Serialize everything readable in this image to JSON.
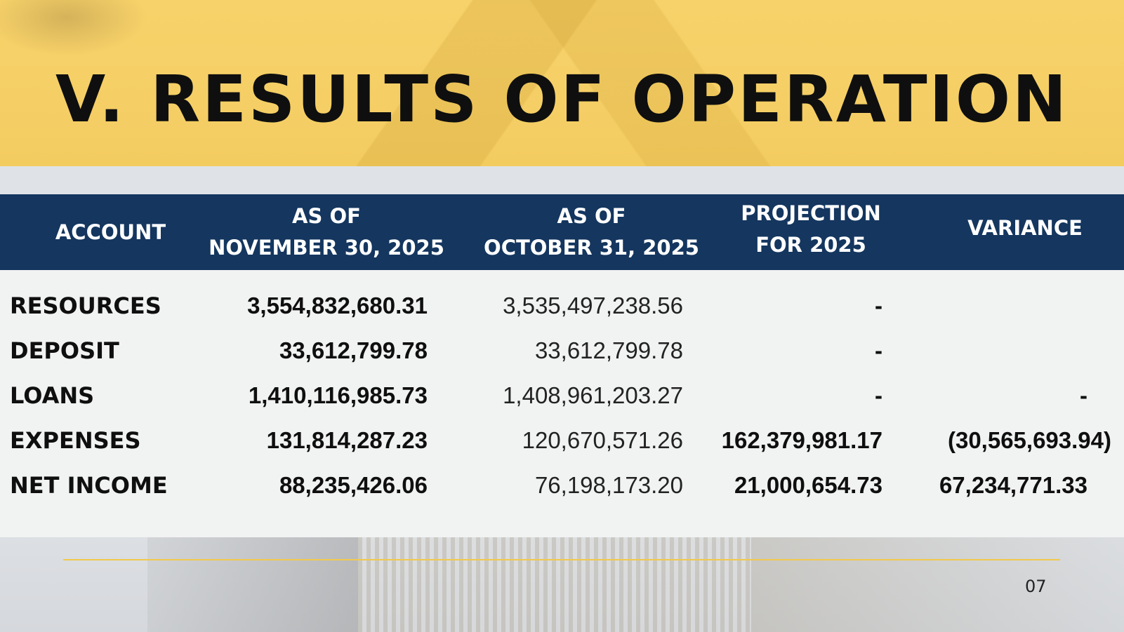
{
  "slide": {
    "title": "V. RESULTS OF OPERATION",
    "page_number": "07"
  },
  "table": {
    "headers": [
      {
        "line1": "ACCOUNT",
        "line2": ""
      },
      {
        "line1": "AS OF",
        "line2": "NOVEMBER 30, 2025"
      },
      {
        "line1": "AS OF",
        "line2": "OCTOBER 31, 2025"
      },
      {
        "line1": "PROJECTION",
        "line2": "FOR 2025"
      },
      {
        "line1": "VARIANCE",
        "line2": ""
      }
    ],
    "rows": [
      {
        "account": "RESOURCES",
        "nov": "3,554,832,680.31",
        "oct": "3,535,497,238.56",
        "projection": "-",
        "variance": ""
      },
      {
        "account": "DEPOSIT",
        "nov": "33,612,799.78",
        "oct": "33,612,799.78",
        "projection": "-",
        "variance": ""
      },
      {
        "account": "LOANS",
        "nov": "1,410,116,985.73",
        "oct": "1,408,961,203.27",
        "projection": "-",
        "variance": "-"
      },
      {
        "account": "EXPENSES",
        "nov": "131,814,287.23",
        "oct": "120,670,571.26",
        "projection": "162,379,981.17",
        "variance": "(30,565,693.94)"
      },
      {
        "account": "NET INCOME",
        "nov": "88,235,426.06",
        "oct": "76,198,173.20",
        "projection": "21,000,654.73",
        "variance": "67,234,771.33"
      }
    ]
  },
  "colors": {
    "header_bg": "#14365f",
    "banner_bg": "#f5cf66",
    "accent_rule": "#f2c94c"
  }
}
